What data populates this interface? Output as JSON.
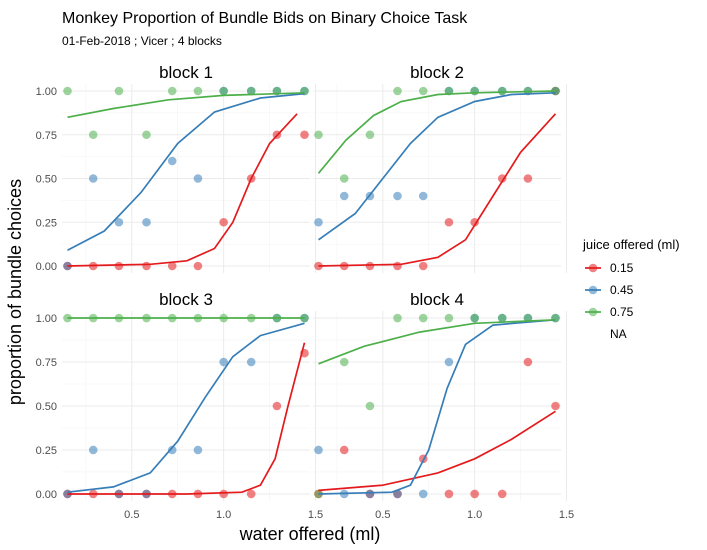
{
  "chart_data": {
    "type": "scatter",
    "title": "Monkey Proportion of Bundle Bids on Binary Choice Task",
    "subtitle": "01-Feb-2018 ; Vicer ; 4 blocks",
    "xlabel": "water offered (ml)",
    "ylabel": "proportion of bundle choices",
    "xlim": [
      0.12,
      1.47
    ],
    "ylim": [
      -0.04,
      1.04
    ],
    "x_ticks": [
      0.5,
      1.0,
      1.5
    ],
    "x_tick_labels": [
      "0.5",
      "1.0",
      "1.5"
    ],
    "y_ticks": [
      0,
      0.25,
      0.5,
      0.75,
      1
    ],
    "y_tick_labels": [
      "0.00",
      "0.25",
      "0.50",
      "0.75",
      "1.00"
    ],
    "grid": true,
    "legend": {
      "title": "juice offered (ml)",
      "position": "right",
      "entries": [
        {
          "label": "0.15",
          "color": "#e41a1c"
        },
        {
          "label": "0.45",
          "color": "#377eb8"
        },
        {
          "label": "0.75",
          "color": "#4daf4a"
        },
        {
          "label": "NA",
          "color": ""
        }
      ]
    },
    "colors": {
      "0.15": "#e41a1c",
      "0.45": "#377eb8",
      "0.75": "#4daf4a"
    },
    "panels": [
      {
        "label": "block 1",
        "points": {
          "0.15": [
            [
              0.15,
              0
            ],
            [
              0.29,
              0
            ],
            [
              0.43,
              0
            ],
            [
              0.58,
              0
            ],
            [
              0.72,
              0
            ],
            [
              0.86,
              0
            ],
            [
              1.0,
              0.25
            ],
            [
              1.15,
              0.5
            ],
            [
              1.29,
              0.75
            ],
            [
              1.44,
              0.75
            ]
          ],
          "0.45": [
            [
              0.15,
              0
            ],
            [
              0.29,
              0.5
            ],
            [
              0.43,
              0.25
            ],
            [
              0.58,
              0.25
            ],
            [
              0.72,
              0.6
            ],
            [
              0.86,
              0.5
            ],
            [
              1.0,
              1.0
            ],
            [
              1.15,
              1.0
            ],
            [
              1.29,
              1.0
            ],
            [
              1.44,
              1.0
            ]
          ],
          "0.75": [
            [
              0.15,
              1.0
            ],
            [
              0.29,
              0.75
            ],
            [
              0.43,
              1.0
            ],
            [
              0.58,
              0.75
            ],
            [
              0.72,
              1.0
            ],
            [
              0.86,
              1.0
            ],
            [
              1.0,
              1.0
            ],
            [
              1.15,
              1.0
            ],
            [
              1.29,
              1.0
            ],
            [
              1.44,
              1.0
            ]
          ]
        },
        "curves": {
          "0.15": [
            [
              0.15,
              0
            ],
            [
              0.6,
              0.01
            ],
            [
              0.8,
              0.03
            ],
            [
              0.95,
              0.1
            ],
            [
              1.05,
              0.25
            ],
            [
              1.15,
              0.5
            ],
            [
              1.25,
              0.7
            ],
            [
              1.4,
              0.87
            ]
          ],
          "0.45": [
            [
              0.15,
              0.09
            ],
            [
              0.35,
              0.2
            ],
            [
              0.55,
              0.42
            ],
            [
              0.75,
              0.7
            ],
            [
              0.95,
              0.88
            ],
            [
              1.2,
              0.96
            ],
            [
              1.44,
              0.985
            ]
          ],
          "0.75": [
            [
              0.15,
              0.85
            ],
            [
              0.4,
              0.9
            ],
            [
              0.7,
              0.95
            ],
            [
              1.0,
              0.975
            ],
            [
              1.44,
              0.99
            ]
          ]
        }
      },
      {
        "label": "block 2",
        "points": {
          "0.15": [
            [
              0.15,
              0
            ],
            [
              0.29,
              0
            ],
            [
              0.43,
              0
            ],
            [
              0.58,
              0
            ],
            [
              0.72,
              0
            ],
            [
              0.86,
              0.25
            ],
            [
              1.0,
              0.25
            ],
            [
              1.15,
              0.5
            ],
            [
              1.29,
              0.5
            ],
            [
              1.44,
              1.0
            ]
          ],
          "0.45": [
            [
              0.15,
              0.25
            ],
            [
              0.29,
              0.4
            ],
            [
              0.43,
              0.4
            ],
            [
              0.58,
              0.4
            ],
            [
              0.72,
              0.4
            ],
            [
              0.86,
              1.0
            ],
            [
              1.0,
              1.0
            ],
            [
              1.15,
              1.0
            ],
            [
              1.29,
              1.0
            ],
            [
              1.44,
              1.0
            ]
          ],
          "0.75": [
            [
              0.15,
              0.75
            ],
            [
              0.29,
              0.5
            ],
            [
              0.43,
              0.75
            ],
            [
              0.58,
              1.0
            ],
            [
              0.72,
              1.0
            ],
            [
              0.86,
              1.0
            ],
            [
              1.0,
              1.0
            ],
            [
              1.15,
              1.0
            ],
            [
              1.29,
              1.0
            ],
            [
              1.44,
              1.0
            ]
          ]
        },
        "curves": {
          "0.15": [
            [
              0.15,
              0
            ],
            [
              0.6,
              0.01
            ],
            [
              0.8,
              0.05
            ],
            [
              0.95,
              0.15
            ],
            [
              1.1,
              0.4
            ],
            [
              1.25,
              0.65
            ],
            [
              1.44,
              0.87
            ]
          ],
          "0.45": [
            [
              0.15,
              0.15
            ],
            [
              0.35,
              0.3
            ],
            [
              0.5,
              0.5
            ],
            [
              0.65,
              0.7
            ],
            [
              0.8,
              0.85
            ],
            [
              1.0,
              0.94
            ],
            [
              1.2,
              0.98
            ],
            [
              1.44,
              0.99
            ]
          ],
          "0.75": [
            [
              0.15,
              0.53
            ],
            [
              0.3,
              0.72
            ],
            [
              0.45,
              0.86
            ],
            [
              0.6,
              0.94
            ],
            [
              0.8,
              0.98
            ],
            [
              1.0,
              0.99
            ],
            [
              1.44,
              1.0
            ]
          ]
        }
      },
      {
        "label": "block 3",
        "points": {
          "0.15": [
            [
              0.15,
              0
            ],
            [
              0.29,
              0
            ],
            [
              0.43,
              0
            ],
            [
              0.58,
              0
            ],
            [
              0.72,
              0
            ],
            [
              0.86,
              0
            ],
            [
              1.0,
              0
            ],
            [
              1.15,
              0
            ],
            [
              1.29,
              0.5
            ],
            [
              1.44,
              0.8
            ]
          ],
          "0.45": [
            [
              0.15,
              0
            ],
            [
              0.29,
              0.25
            ],
            [
              0.43,
              0
            ],
            [
              0.58,
              0
            ],
            [
              0.72,
              0.25
            ],
            [
              0.86,
              0.25
            ],
            [
              1.0,
              0.75
            ],
            [
              1.15,
              0.75
            ],
            [
              1.29,
              1.0
            ],
            [
              1.44,
              1.0
            ]
          ],
          "0.75": [
            [
              0.15,
              1.0
            ],
            [
              0.29,
              1.0
            ],
            [
              0.43,
              1.0
            ],
            [
              0.58,
              1.0
            ],
            [
              0.72,
              1.0
            ],
            [
              0.86,
              1.0
            ],
            [
              1.0,
              1.0
            ],
            [
              1.15,
              1.0
            ],
            [
              1.29,
              1.0
            ],
            [
              1.44,
              1.0
            ]
          ]
        },
        "curves": {
          "0.15": [
            [
              0.15,
              0
            ],
            [
              0.8,
              0
            ],
            [
              1.1,
              0.01
            ],
            [
              1.2,
              0.05
            ],
            [
              1.28,
              0.2
            ],
            [
              1.35,
              0.5
            ],
            [
              1.44,
              0.86
            ]
          ],
          "0.45": [
            [
              0.15,
              0.01
            ],
            [
              0.4,
              0.04
            ],
            [
              0.6,
              0.12
            ],
            [
              0.75,
              0.3
            ],
            [
              0.9,
              0.55
            ],
            [
              1.05,
              0.78
            ],
            [
              1.2,
              0.9
            ],
            [
              1.44,
              0.97
            ]
          ],
          "0.75": [
            [
              0.15,
              1.0
            ],
            [
              1.44,
              1.0
            ]
          ]
        }
      },
      {
        "label": "block 4",
        "points": {
          "0.15": [
            [
              0.15,
              0
            ],
            [
              0.29,
              0.25
            ],
            [
              0.43,
              0
            ],
            [
              0.58,
              0
            ],
            [
              0.72,
              0.2
            ],
            [
              0.86,
              0
            ],
            [
              1.0,
              0
            ],
            [
              1.15,
              0
            ],
            [
              1.29,
              0.75
            ],
            [
              1.44,
              0.5
            ]
          ],
          "0.45": [
            [
              0.15,
              0.25
            ],
            [
              0.29,
              0
            ],
            [
              0.43,
              0
            ],
            [
              0.58,
              0
            ],
            [
              0.72,
              0
            ],
            [
              0.86,
              0.75
            ],
            [
              1.0,
              1.0
            ],
            [
              1.15,
              1.0
            ],
            [
              1.29,
              1.0
            ],
            [
              1.44,
              1.0
            ]
          ],
          "0.75": [
            [
              0.15,
              0
            ],
            [
              0.29,
              0.75
            ],
            [
              0.43,
              0.5
            ],
            [
              0.58,
              1.0
            ],
            [
              0.72,
              1.0
            ],
            [
              0.86,
              1.0
            ],
            [
              1.0,
              1.0
            ],
            [
              1.15,
              1.0
            ],
            [
              1.29,
              1.0
            ],
            [
              1.44,
              1.0
            ]
          ]
        },
        "curves": {
          "0.15": [
            [
              0.15,
              0.02
            ],
            [
              0.5,
              0.05
            ],
            [
              0.8,
              0.12
            ],
            [
              1.0,
              0.2
            ],
            [
              1.2,
              0.31
            ],
            [
              1.44,
              0.47
            ]
          ],
          "0.45": [
            [
              0.15,
              0
            ],
            [
              0.55,
              0.01
            ],
            [
              0.65,
              0.05
            ],
            [
              0.75,
              0.25
            ],
            [
              0.85,
              0.6
            ],
            [
              0.95,
              0.85
            ],
            [
              1.1,
              0.96
            ],
            [
              1.44,
              0.99
            ]
          ],
          "0.75": [
            [
              0.15,
              0.74
            ],
            [
              0.4,
              0.84
            ],
            [
              0.7,
              0.92
            ],
            [
              1.0,
              0.97
            ],
            [
              1.44,
              0.99
            ]
          ]
        }
      }
    ]
  }
}
